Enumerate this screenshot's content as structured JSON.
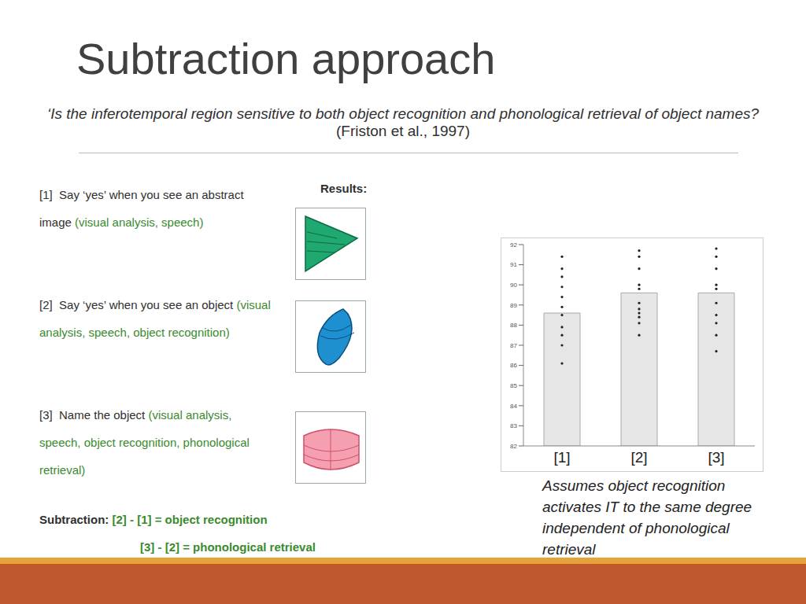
{
  "title": "Subtraction approach",
  "question": "‘Is the inferotemporal region sensitive to both object recognition and phonological retrieval of object names?",
  "citation": "(Friston et al., 1997)",
  "conditions": [
    {
      "label": "[1]",
      "task": "Say ‘yes’ when you see an abstract image",
      "components": "(visual analysis, speech)"
    },
    {
      "label": "[2]",
      "task": "Say ‘yes’ when you see an object",
      "components": "(visual analysis, speech, object recognition)"
    },
    {
      "label": "[3]",
      "task": "Name the object",
      "components": "(visual analysis, speech, object recognition, phonological retrieval)"
    }
  ],
  "results_label": "Results:",
  "subtraction": {
    "label": "Subtraction:",
    "rows": [
      "[2] - [1] = object recognition",
      "[3] - [2] = phonological retrieval"
    ]
  },
  "chart_data": {
    "type": "bar",
    "categories": [
      "[1]",
      "[2]",
      "[3]"
    ],
    "values": [
      88.6,
      89.6,
      89.6
    ],
    "points": [
      [
        91.4,
        90.8,
        90.4,
        89.9,
        89.4,
        88.9,
        88.5,
        87.9,
        87.5,
        87.0,
        86.1
      ],
      [
        91.7,
        91.4,
        90.8,
        90.0,
        89.8,
        89.1,
        88.8,
        88.6,
        88.4,
        88.1,
        87.5
      ],
      [
        91.8,
        91.4,
        90.8,
        90.0,
        89.8,
        89.1,
        88.5,
        88.1,
        87.5,
        86.7
      ]
    ],
    "color": "#e6e6e6",
    "ylim": [
      82,
      92
    ],
    "yticks": [
      82,
      83,
      84,
      85,
      86,
      87,
      88,
      89,
      90,
      91,
      92
    ]
  },
  "note": "Assumes object recognition activates IT to the same degree independent of phonological retrieval"
}
